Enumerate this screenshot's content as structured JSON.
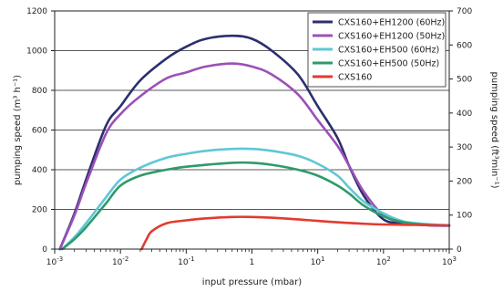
{
  "chart_data": {
    "type": "line",
    "x_scale": "log",
    "xlabel": "input pressure (mbar)",
    "ylabel": "pumping speed (m³ h⁻¹)",
    "ylabel_right": "pumping speed (ft³min⁻¹)",
    "xlim": [
      0.001,
      1000
    ],
    "ylim": [
      0,
      1200
    ],
    "ylim_right": [
      0,
      700
    ],
    "grid": "horizontal",
    "legend_position": "top-right",
    "x_ticks": [
      {
        "value": 0.001,
        "base": "10",
        "exp": "-3"
      },
      {
        "value": 0.01,
        "base": "10",
        "exp": "-2"
      },
      {
        "value": 0.1,
        "base": "10",
        "exp": "-1"
      },
      {
        "value": 1,
        "base": "1",
        "exp": ""
      },
      {
        "value": 10,
        "base": "10",
        "exp": "1"
      },
      {
        "value": 100,
        "base": "10",
        "exp": "2"
      },
      {
        "value": 1000,
        "base": "10",
        "exp": "3"
      }
    ],
    "y_ticks": [
      "0",
      "200",
      "400",
      "600",
      "800",
      "1000",
      "1200"
    ],
    "y_ticks_right": [
      "0",
      "100",
      "200",
      "300",
      "400",
      "500",
      "600",
      "700"
    ],
    "series": [
      {
        "name": "CXS160+EH1200 (60Hz)",
        "color": "#2b2f6e",
        "points": [
          [
            0.0012,
            0
          ],
          [
            0.002,
            180
          ],
          [
            0.003,
            350
          ],
          [
            0.006,
            620
          ],
          [
            0.01,
            720
          ],
          [
            0.02,
            850
          ],
          [
            0.05,
            960
          ],
          [
            0.1,
            1020
          ],
          [
            0.2,
            1060
          ],
          [
            0.5,
            1075
          ],
          [
            1,
            1060
          ],
          [
            2,
            1000
          ],
          [
            5,
            880
          ],
          [
            10,
            720
          ],
          [
            20,
            560
          ],
          [
            30,
            420
          ],
          [
            50,
            270
          ],
          [
            100,
            150
          ],
          [
            200,
            130
          ],
          [
            500,
            120
          ],
          [
            1000,
            118
          ]
        ]
      },
      {
        "name": "CXS160+EH1200 (50Hz)",
        "color": "#9b50b8",
        "points": [
          [
            0.0012,
            0
          ],
          [
            0.002,
            170
          ],
          [
            0.003,
            330
          ],
          [
            0.006,
            580
          ],
          [
            0.01,
            680
          ],
          [
            0.02,
            770
          ],
          [
            0.05,
            860
          ],
          [
            0.1,
            890
          ],
          [
            0.2,
            920
          ],
          [
            0.5,
            935
          ],
          [
            1,
            920
          ],
          [
            2,
            880
          ],
          [
            5,
            780
          ],
          [
            10,
            650
          ],
          [
            20,
            520
          ],
          [
            30,
            420
          ],
          [
            50,
            290
          ],
          [
            100,
            170
          ],
          [
            200,
            135
          ],
          [
            500,
            120
          ],
          [
            1000,
            118
          ]
        ]
      },
      {
        "name": "CXS160+EH500 (60Hz)",
        "color": "#5fc7d6",
        "points": [
          [
            0.0013,
            0
          ],
          [
            0.002,
            60
          ],
          [
            0.003,
            130
          ],
          [
            0.006,
            260
          ],
          [
            0.01,
            350
          ],
          [
            0.02,
            410
          ],
          [
            0.05,
            460
          ],
          [
            0.1,
            480
          ],
          [
            0.2,
            495
          ],
          [
            0.5,
            505
          ],
          [
            1,
            505
          ],
          [
            2,
            495
          ],
          [
            5,
            470
          ],
          [
            10,
            430
          ],
          [
            20,
            370
          ],
          [
            30,
            310
          ],
          [
            50,
            240
          ],
          [
            100,
            180
          ],
          [
            200,
            140
          ],
          [
            500,
            125
          ],
          [
            1000,
            120
          ]
        ]
      },
      {
        "name": "CXS160+EH500 (50Hz)",
        "color": "#2f9a6a",
        "points": [
          [
            0.0013,
            0
          ],
          [
            0.002,
            50
          ],
          [
            0.003,
            110
          ],
          [
            0.006,
            230
          ],
          [
            0.01,
            320
          ],
          [
            0.02,
            370
          ],
          [
            0.05,
            400
          ],
          [
            0.1,
            415
          ],
          [
            0.2,
            425
          ],
          [
            0.5,
            435
          ],
          [
            1,
            435
          ],
          [
            2,
            425
          ],
          [
            5,
            400
          ],
          [
            10,
            370
          ],
          [
            20,
            320
          ],
          [
            30,
            280
          ],
          [
            50,
            220
          ],
          [
            100,
            165
          ],
          [
            200,
            135
          ],
          [
            500,
            122
          ],
          [
            1000,
            120
          ]
        ]
      },
      {
        "name": "CXS160",
        "color": "#e23b2e",
        "points": [
          [
            0.021,
            0
          ],
          [
            0.025,
            50
          ],
          [
            0.03,
            90
          ],
          [
            0.05,
            130
          ],
          [
            0.1,
            145
          ],
          [
            0.2,
            155
          ],
          [
            0.5,
            162
          ],
          [
            1,
            162
          ],
          [
            2,
            158
          ],
          [
            5,
            150
          ],
          [
            10,
            142
          ],
          [
            20,
            135
          ],
          [
            50,
            128
          ],
          [
            100,
            124
          ],
          [
            300,
            122
          ],
          [
            1000,
            120
          ]
        ]
      }
    ]
  }
}
